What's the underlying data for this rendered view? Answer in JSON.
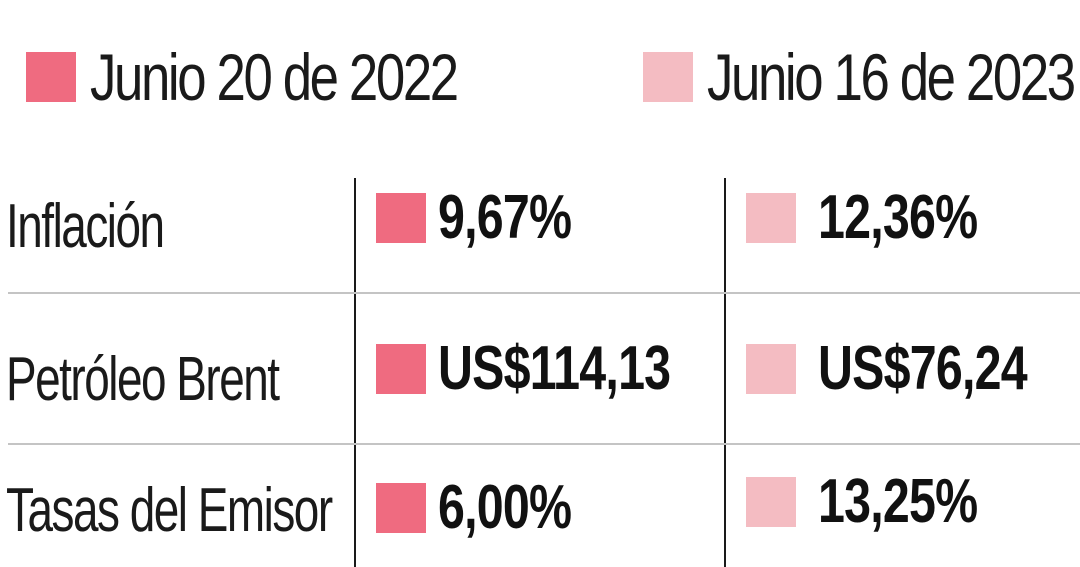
{
  "colors": {
    "series_2022": "#ef6b80",
    "series_2023": "#f4bcc2"
  },
  "legend": [
    {
      "label": "Junio 20 de 2022",
      "color": "#ef6b80"
    },
    {
      "label": "Junio 16 de 2023",
      "color": "#f4bcc2"
    }
  ],
  "chart_data": {
    "type": "table",
    "series": [
      {
        "name": "Junio 20 de 2022",
        "values": [
          "9,67%",
          "US$114,13",
          "6,00%"
        ]
      },
      {
        "name": "Junio 16 de 2023",
        "values": [
          "12,36%",
          "US$76,24",
          "13,25%"
        ]
      }
    ],
    "rows": [
      {
        "label": "Inflación",
        "v2022": "9,67%",
        "v2023": "12,36%"
      },
      {
        "label": "Petróleo Brent",
        "v2022": "US$114,13",
        "v2023": "US$76,24"
      },
      {
        "label": "Tasas del Emisor",
        "v2022": "6,00%",
        "v2023": "13,25%"
      }
    ]
  }
}
